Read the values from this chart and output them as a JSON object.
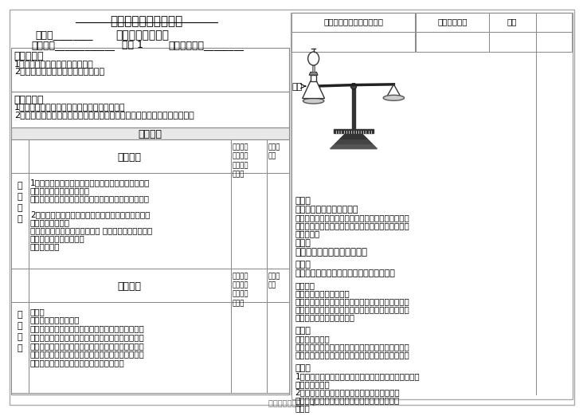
{
  "title": "九年级化学学科导学案",
  "main_person_label": "主备人________",
  "course_title_label": "课题质量守恒定律",
  "time_label": "授课时间____________",
  "class_label": "课时 1",
  "group_label": "组长审核签字________",
  "section1_title": "学习目标：",
  "section1_content": [
    "1、能说出质量守恒定律的内容；",
    "2、能从微观角度理解质量守恒定律；"
  ],
  "section2_title": "重、难点：",
  "section2_content": [
    "1、重点：通过实验学习、认识质量守恒定律。",
    "2、难点：能从微观角度理解质量守恒定律；能用质量守恒解决简单的问题。"
  ],
  "guide_title": "导学过程",
  "table_col2_header": "学生部分",
  "table_col3_header": "教师部分\n学法指\n导及方法\n归纳",
  "table_col4_header": "教师复\n备栏",
  "row1_content": [
    "1、当一种物质不发生化学变化时，无论它以哪种状态",
    "或形式存在，质量都不变。",
    "如将一块铁变成铁丝、铁粉、铁水，它的质量都不变。",
    "",
    "2、当物质发生化学变化时，它的质量会变化吗？如果",
    "变，会怎样变化？",
    "如木材燃烧完后，只剩下了炭灰 蜡烛燃烧，最后没了；",
    "铁生锈，其质量增多了。",
    "怎么回事儿？"
  ],
  "row2_content": [
    "实验：",
    "白磷燃烧前后质量关系",
    "取一个锥形瓶，将少许白磷放入其中，然后取一支滴",
    "管，套上一个气球并将其插入单孔橡皮塞中，并把橡",
    "皮塞紧紧的在锥形瓶中；在点燃前先称量这一装置与",
    "白磷的总质量；然后点燃白磷，观察现象，等冷却后",
    "再去称量总质量，将所得数据填入下表中。"
  ],
  "right_table_headers": [
    "反应前装置与白磷的总质量",
    "反应后总质量",
    "现象"
  ],
  "think_title": "思考：",
  "think_q": "气球为什么开始先鼓后瘪？",
  "think_ans": [
    "（燃烧时瓶内气体受热膨胀，冷却后五氧化二磷固体",
    "小颗粒落于瓶底，瓶内氧气消耗，气体量减少，因此",
    "气球瘪了）"
  ],
  "guina1_title": "归纳：",
  "guina1_content": "反应前总质量＝反应后总质量",
  "discuss_title": "讨论：",
  "discuss_content": "木炭燃烧后只剩余炭灰，是质量不守恒吗？",
  "hint_lines": [
    "（提示：",
    "从木炭燃烧的产物思考；",
    "木炭燃烧生成的二氧化碳气体散逸到空气中，从直观",
    "上感觉到质量不守恒；如将产生的二氧化碳收集起来",
    "再称量，则遵守质量守恒）"
  ],
  "guina2_title": "归纳：",
  "guina2_lines": [
    "质量守恒定律：",
    "参加化学反应的各物质的质量总和，等于反应后生成",
    "的各物质的质量总和。这个规律叫做质量守恒定律。"
  ],
  "note_title": "注意：",
  "note_lines": [
    "1、只有化学变化才遵守质量守恒定律（物理变化不用质",
    "量守恒定律）；",
    "2、守恒的是总质量，即参加反应的各反应物的",
    "总质量和生成物的总质量；如沉淀、气体等都应",
    "考虑；"
  ],
  "footer": "初中化学导学案    1",
  "bg_color": "#ffffff",
  "text_color": "#000000",
  "border_color": "#888888"
}
